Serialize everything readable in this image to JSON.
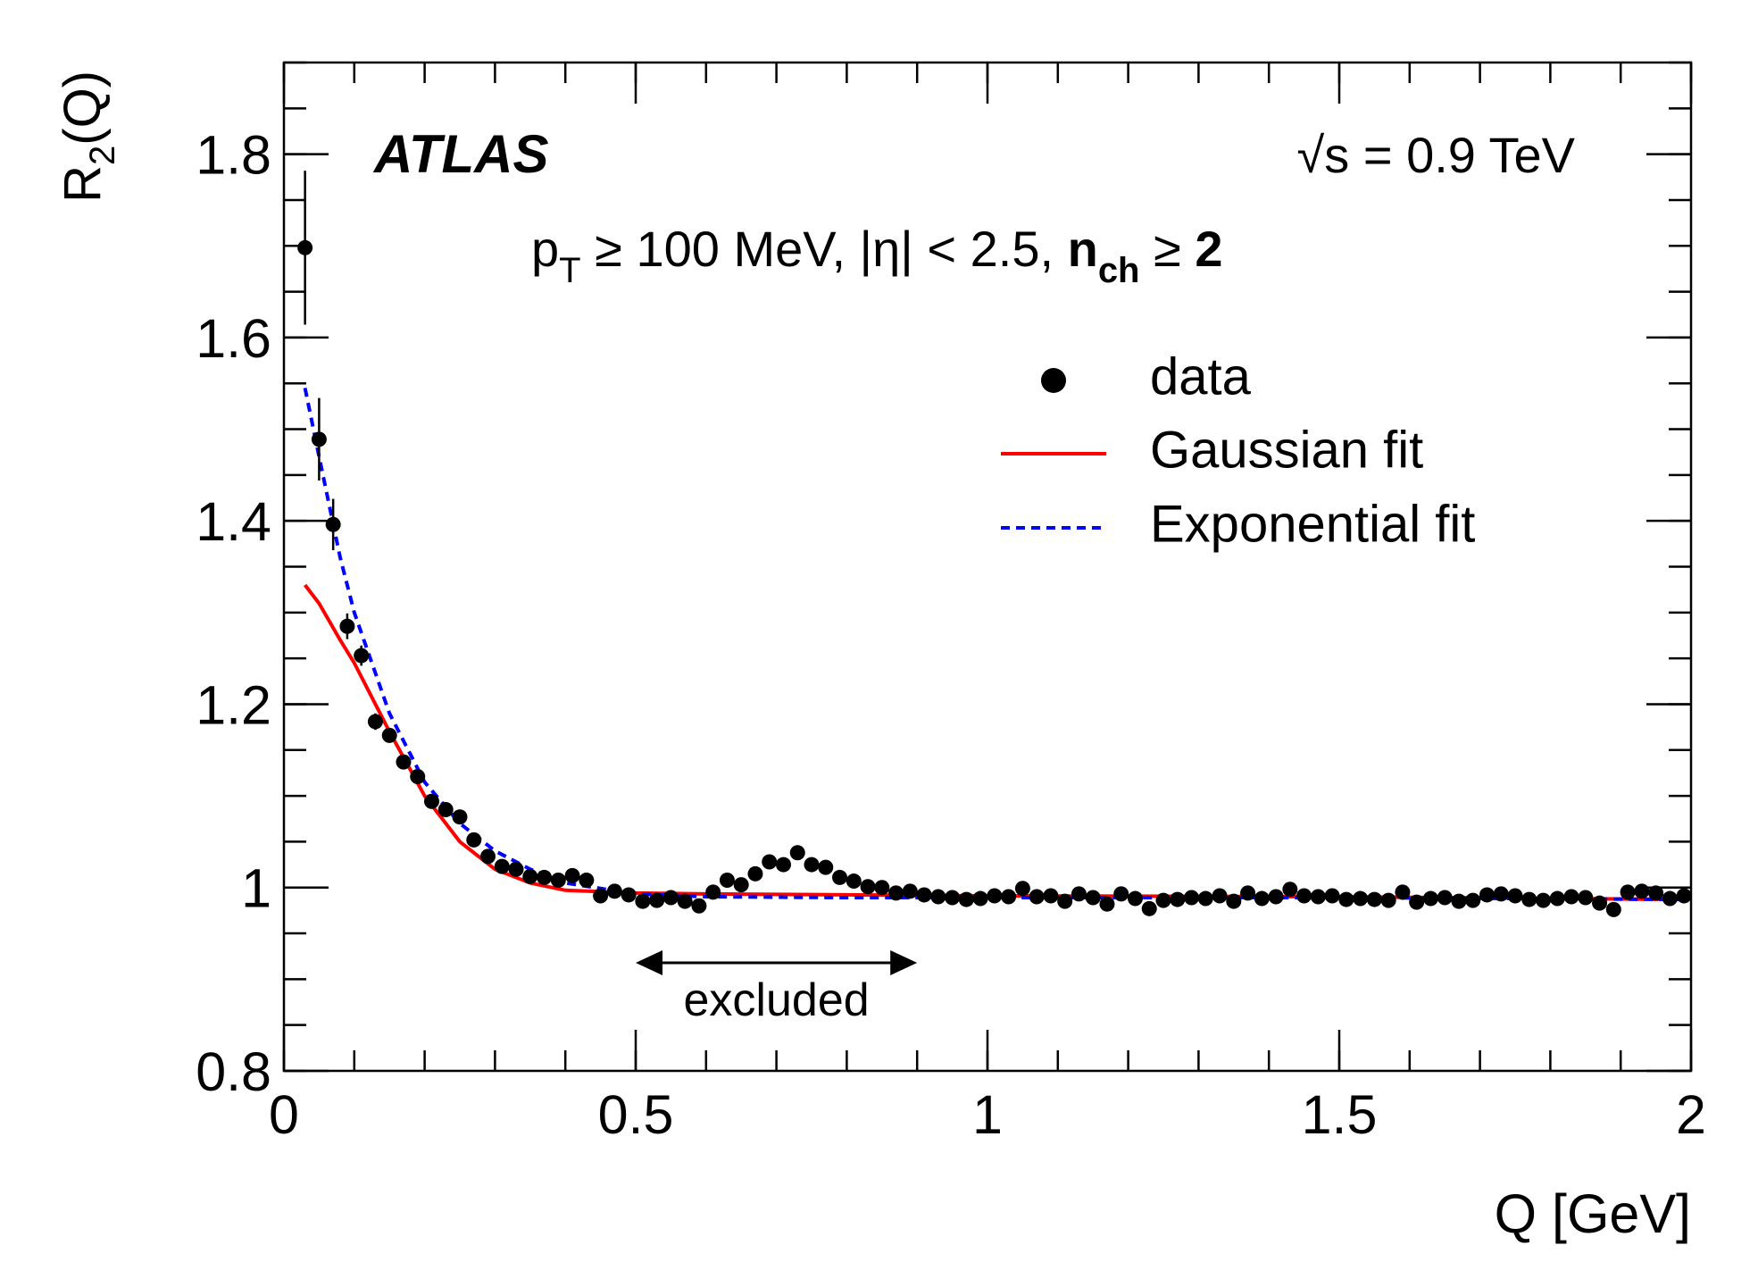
{
  "chart_data": {
    "type": "scatter",
    "y_label": {
      "main": "R",
      "sub": "2",
      "rest": "(Q)"
    },
    "x_label": "Q [GeV]",
    "experiment": "ATLAS",
    "energy": "√s = 0.9 TeV",
    "cuts": [
      "p",
      "T",
      " ≥ 100 MeV, |η| < 2.5, ",
      "n",
      "ch",
      " ≥ ",
      "2"
    ],
    "excluded_label": "excluded",
    "excluded_range": [
      0.5,
      0.9
    ],
    "xlim": [
      0,
      2
    ],
    "xticks": [
      0,
      0.5,
      1,
      1.5,
      2
    ],
    "ylim": [
      0.8,
      1.9
    ],
    "yticks": [
      0.8,
      1,
      1.2,
      1.4,
      1.6,
      1.8
    ],
    "legend": "upper right",
    "series": [
      {
        "name": "data",
        "type": "scatter",
        "color": "#000000",
        "x": [
          0.03,
          0.05,
          0.07,
          0.09,
          0.11,
          0.13,
          0.15,
          0.17,
          0.19,
          0.21,
          0.23,
          0.25,
          0.27,
          0.29,
          0.31,
          0.33,
          0.35,
          0.37,
          0.39,
          0.41,
          0.43,
          0.45,
          0.47,
          0.49,
          0.51,
          0.53,
          0.55,
          0.57,
          0.59,
          0.61,
          0.63,
          0.65,
          0.67,
          0.69,
          0.71,
          0.73,
          0.75,
          0.77,
          0.79,
          0.81,
          0.83,
          0.85,
          0.87,
          0.89,
          0.91,
          0.93,
          0.95,
          0.97,
          0.99,
          1.01,
          1.03,
          1.05,
          1.07,
          1.09,
          1.11,
          1.13,
          1.15,
          1.17,
          1.19,
          1.21,
          1.23,
          1.25,
          1.27,
          1.29,
          1.31,
          1.33,
          1.35,
          1.37,
          1.39,
          1.41,
          1.43,
          1.45,
          1.47,
          1.49,
          1.51,
          1.53,
          1.55,
          1.57,
          1.59,
          1.61,
          1.63,
          1.65,
          1.67,
          1.69,
          1.71,
          1.73,
          1.75,
          1.77,
          1.79,
          1.81,
          1.83,
          1.85,
          1.87,
          1.89,
          1.91,
          1.93,
          1.95,
          1.97,
          1.99
        ],
        "values": [
          1.698,
          1.489,
          1.396,
          1.285,
          1.253,
          1.181,
          1.166,
          1.137,
          1.121,
          1.094,
          1.085,
          1.077,
          1.052,
          1.034,
          1.023,
          1.02,
          1.012,
          1.011,
          1.008,
          1.013,
          1.008,
          0.991,
          0.996,
          0.992,
          0.985,
          0.986,
          0.989,
          0.985,
          0.98,
          0.995,
          1.008,
          1.003,
          1.015,
          1.028,
          1.025,
          1.038,
          1.025,
          1.022,
          1.011,
          1.007,
          1.001,
          1.0,
          0.994,
          0.996,
          0.992,
          0.99,
          0.989,
          0.987,
          0.988,
          0.991,
          0.99,
          0.999,
          0.99,
          0.991,
          0.985,
          0.993,
          0.989,
          0.982,
          0.993,
          0.988,
          0.977,
          0.986,
          0.987,
          0.989,
          0.988,
          0.991,
          0.985,
          0.994,
          0.988,
          0.99,
          0.998,
          0.991,
          0.99,
          0.991,
          0.987,
          0.988,
          0.987,
          0.986,
          0.995,
          0.984,
          0.988,
          0.989,
          0.985,
          0.986,
          0.992,
          0.993,
          0.991,
          0.987,
          0.986,
          0.988,
          0.99,
          0.989,
          0.983,
          0.976,
          0.995,
          0.996,
          0.994,
          0.988,
          0.991
        ],
        "errors": [
          0.084,
          0.045,
          0.028,
          0.014,
          0.011,
          0.009,
          0.008,
          0.007,
          0.006,
          0.006,
          0.005,
          0.005,
          0.005,
          0.005,
          0.005,
          0.005,
          0.005,
          0.005,
          0.005,
          0.005,
          0.005,
          0.005,
          0.005,
          0.005,
          0.005,
          0.005,
          0.005,
          0.005,
          0.005,
          0.005,
          0.005,
          0.005,
          0.005,
          0.005,
          0.005,
          0.005,
          0.005,
          0.005,
          0.005,
          0.005,
          0.005,
          0.005,
          0.005,
          0.005,
          0.005,
          0.005,
          0.005,
          0.005,
          0.005,
          0.005,
          0.005,
          0.005,
          0.005,
          0.005,
          0.005,
          0.005,
          0.005,
          0.005,
          0.005,
          0.005,
          0.005,
          0.005,
          0.005,
          0.005,
          0.005,
          0.005,
          0.005,
          0.005,
          0.005,
          0.005,
          0.005,
          0.005,
          0.005,
          0.005,
          0.005,
          0.005,
          0.005,
          0.005,
          0.005,
          0.005,
          0.005,
          0.005,
          0.005,
          0.005,
          0.005,
          0.005,
          0.005,
          0.005,
          0.005,
          0.005,
          0.005,
          0.005,
          0.005,
          0.005,
          0.005,
          0.005,
          0.005,
          0.005,
          0.005
        ]
      },
      {
        "name": "Gaussian fit",
        "type": "line",
        "color": "#ff0000",
        "x": [
          0.03,
          0.05,
          0.08,
          0.1,
          0.15,
          0.2,
          0.25,
          0.3,
          0.35,
          0.4,
          0.5,
          0.6,
          0.8,
          1,
          1.5,
          1.99
        ],
        "values": [
          1.33,
          1.31,
          1.27,
          1.245,
          1.17,
          1.1,
          1.05,
          1.02,
          1.005,
          0.997,
          0.994,
          0.993,
          0.992,
          0.991,
          0.99,
          0.987
        ]
      },
      {
        "name": "Exponential fit",
        "type": "line",
        "dashed": true,
        "color": "#0000ff",
        "x": [
          0.03,
          0.05,
          0.08,
          0.1,
          0.15,
          0.2,
          0.25,
          0.3,
          0.35,
          0.4,
          0.5,
          0.6,
          0.8,
          1,
          1.5,
          1.99
        ],
        "values": [
          1.545,
          1.47,
          1.36,
          1.3,
          1.19,
          1.115,
          1.07,
          1.04,
          1.02,
          1.005,
          0.993,
          0.99,
          0.989,
          0.989,
          0.989,
          0.987
        ]
      }
    ]
  }
}
